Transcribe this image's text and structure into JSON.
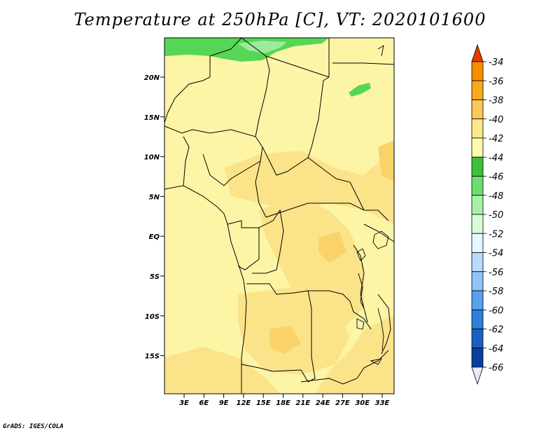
{
  "title": "Temperature at 250hPa [C], VT: 2020101600",
  "credit": "GrADS: IGES/COLA",
  "lat_labels": [
    "20N",
    "15N",
    "10N",
    "5N",
    "EQ",
    "5S",
    "10S",
    "15S"
  ],
  "lon_labels": [
    "3E",
    "6E",
    "9E",
    "12E",
    "15E",
    "18E",
    "21E",
    "24E",
    "27E",
    "30E",
    "33E"
  ],
  "colorbar": {
    "labels": [
      "-34",
      "-36",
      "-38",
      "-40",
      "-42",
      "-44",
      "-46",
      "-48",
      "-50",
      "-52",
      "-54",
      "-56",
      "-58",
      "-60",
      "-62",
      "-64",
      "-66"
    ],
    "colors": [
      "#f06a00",
      "#f58f00",
      "#f8aa1a",
      "#fcc85a",
      "#fbe88e",
      "#fefbb0",
      "#3fbf3f",
      "#6ede6e",
      "#a8f0a8",
      "#d7fdd7",
      "#e6f7ff",
      "#b5dcfc",
      "#8fc4f7",
      "#5aa1ec",
      "#2e7fd9",
      "#1a5fc2",
      "#0a3ea0",
      "#0a1c78"
    ],
    "top_color": "#e83a00",
    "bottom_color": "#e9e9ff"
  },
  "fill_colors": {
    "background": "#fdf5a6",
    "warm": "#fbe38a",
    "warmer": "#f9d36a",
    "cold_green": "#56d656",
    "cold_light": "#9ceb9c"
  }
}
